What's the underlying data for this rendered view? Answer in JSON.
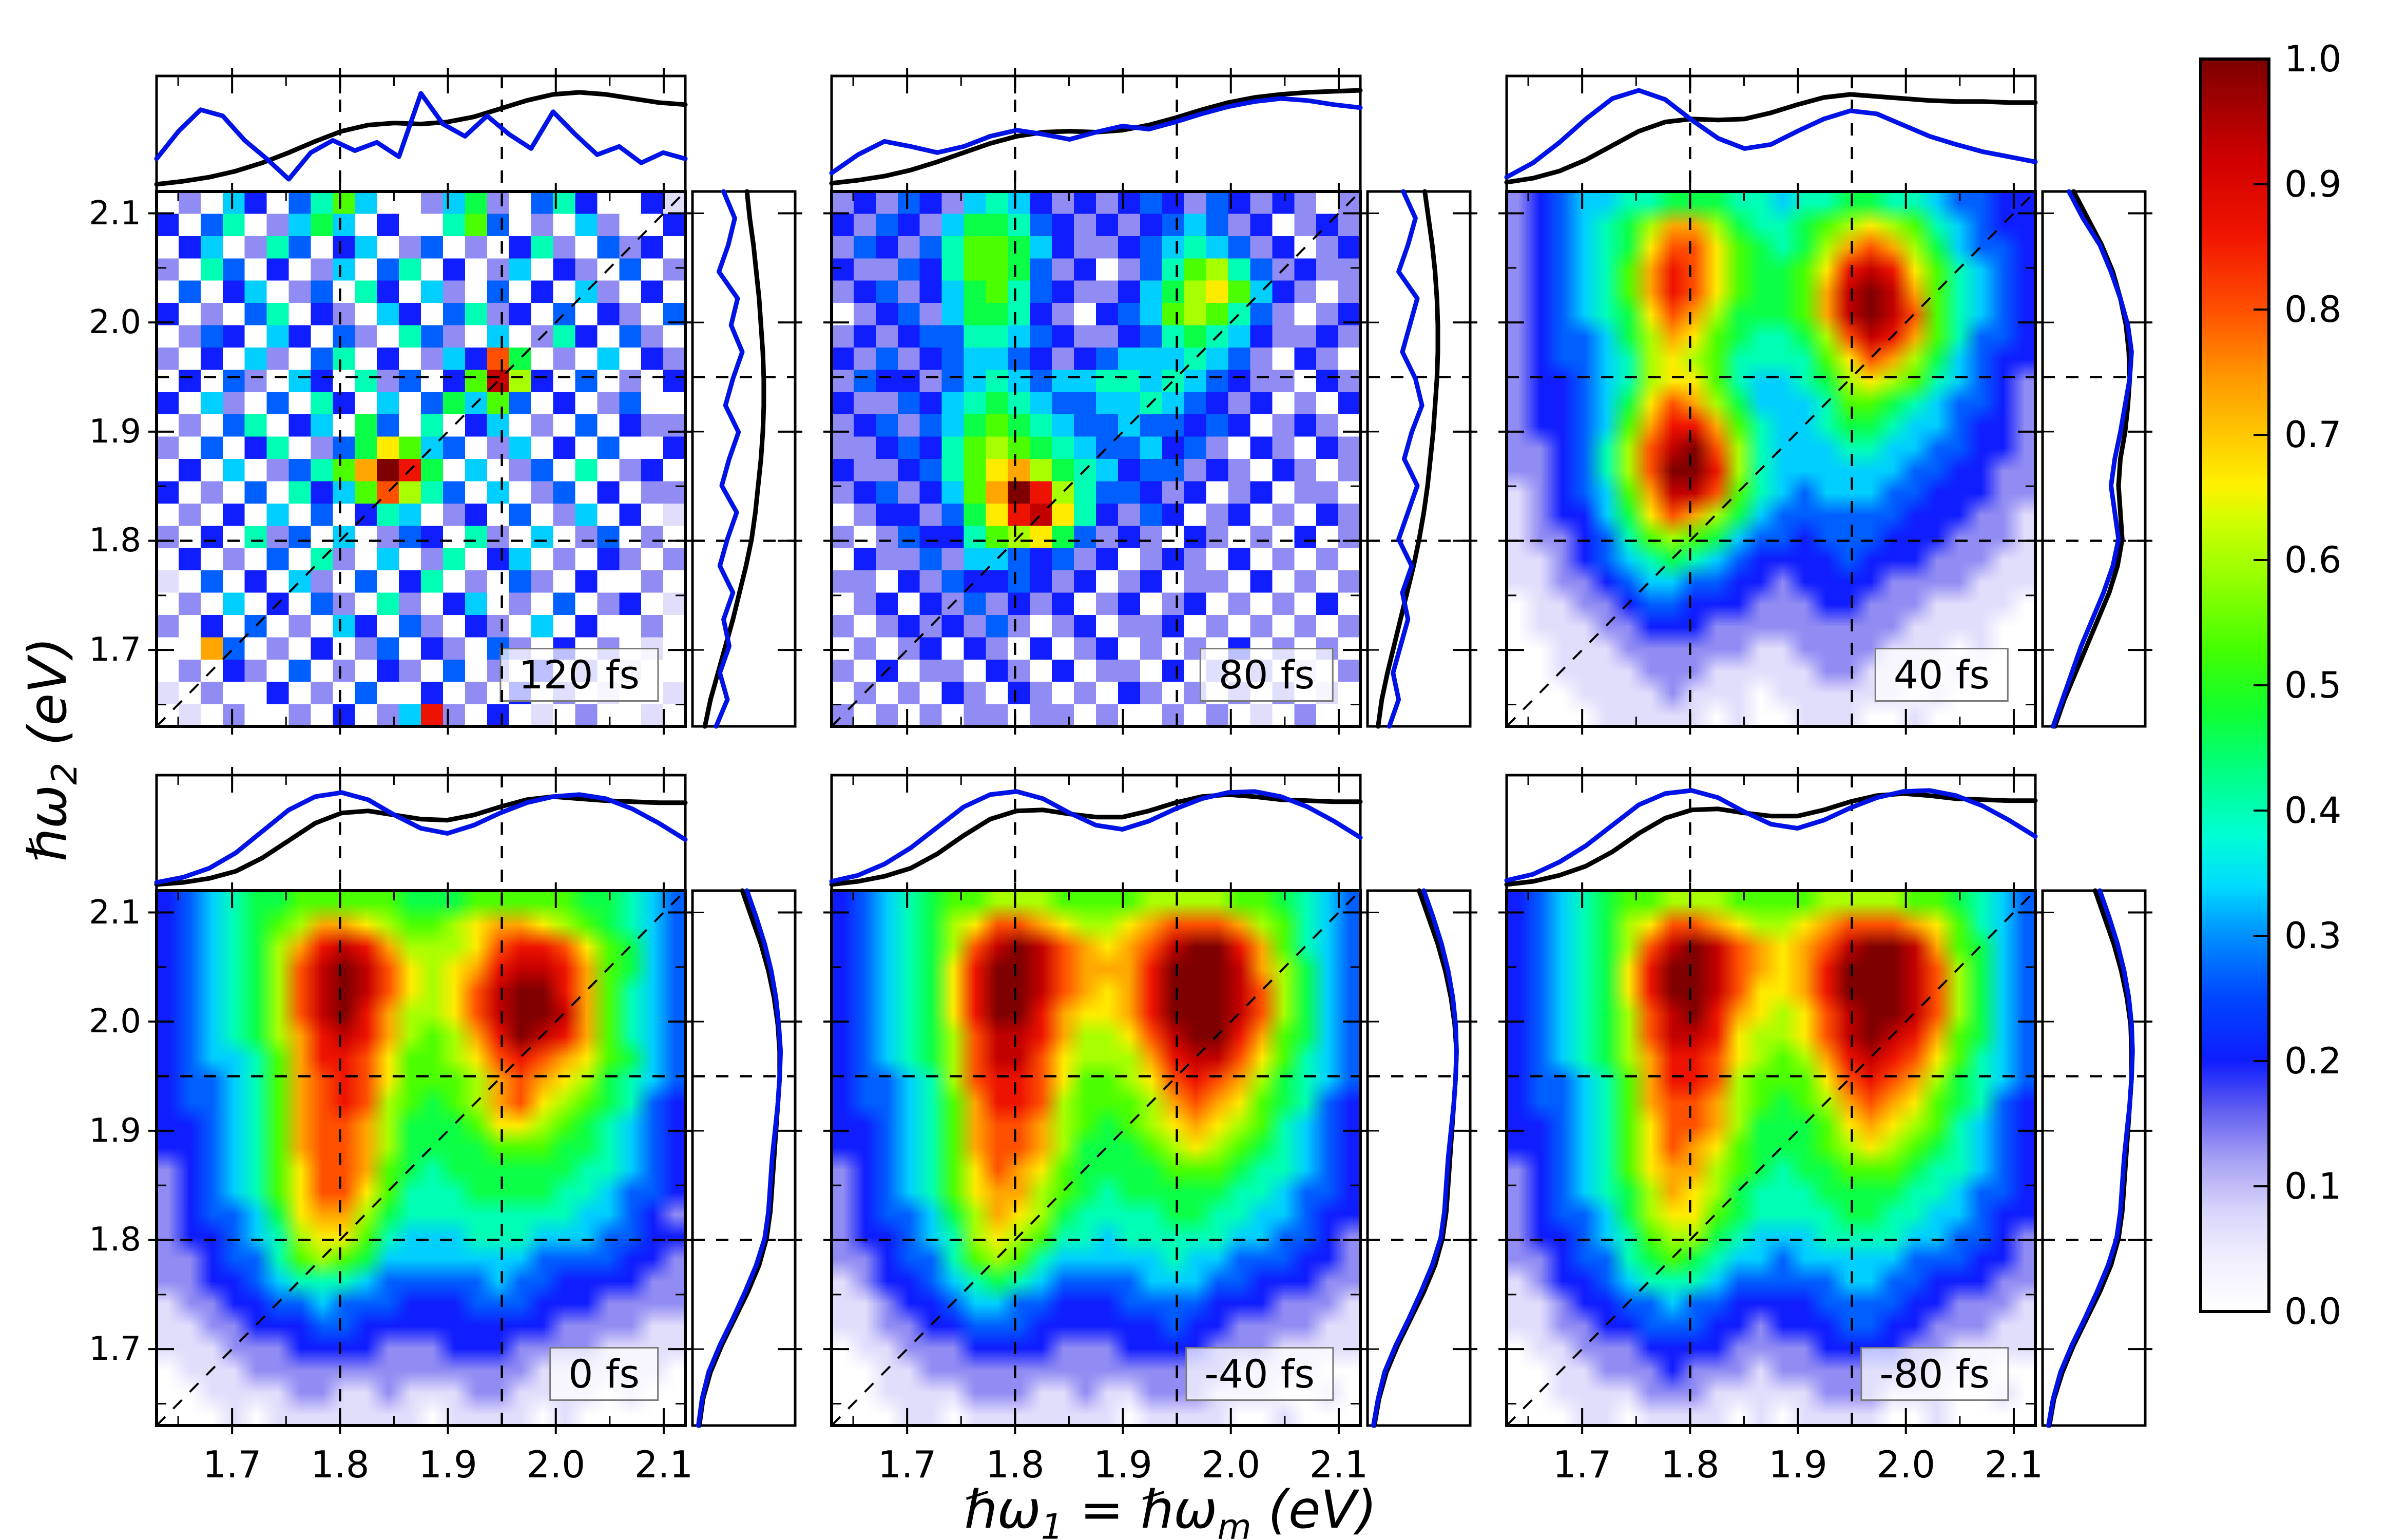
{
  "chart_data": {
    "type": "heatmap",
    "title": "",
    "axis": {
      "range": [
        1.63,
        2.12
      ],
      "tick_values": [
        1.7,
        1.8,
        1.9,
        2.0,
        2.1
      ],
      "tick_labels": [
        "1.7",
        "1.8",
        "1.9",
        "2.0",
        "2.1"
      ],
      "y_tick_values": [
        2.1,
        2.0,
        1.9,
        1.8,
        1.7
      ],
      "y_tick_labels": [
        "2.1",
        "2.0",
        "1.9",
        "1.8",
        "1.7"
      ],
      "minor_step": 0.05,
      "guides": [
        1.8,
        1.95
      ],
      "diagonal": true,
      "xlabel_parts": {
        "pre": "ℏω",
        "sub1": "1",
        "mid": " = ℏω",
        "sub2": "m",
        "post": "  (eV)"
      },
      "ylabel_parts": {
        "pre": "ℏω",
        "sub": "2",
        "post": "  (eV)"
      }
    },
    "colorbar": {
      "tick_labels": [
        "1.0",
        "0.9",
        "0.8",
        "0.7",
        "0.6",
        "0.5",
        "0.4",
        "0.3",
        "0.2",
        "0.1",
        "0.0"
      ],
      "tick_values": [
        1.0,
        0.9,
        0.8,
        0.7,
        0.6,
        0.5,
        0.4,
        0.3,
        0.2,
        0.1,
        0.0
      ]
    },
    "colormap": [
      [
        0,
        "#ffffff"
      ],
      [
        0.04,
        "#f2f0fd"
      ],
      [
        0.08,
        "#d8d5fb"
      ],
      [
        0.12,
        "#a8a3f4"
      ],
      [
        0.16,
        "#625ef0"
      ],
      [
        0.2,
        "#0f1dff"
      ],
      [
        0.25,
        "#0046ff"
      ],
      [
        0.3,
        "#0090ff"
      ],
      [
        0.34,
        "#00dcff"
      ],
      [
        0.38,
        "#00ffd4"
      ],
      [
        0.43,
        "#00ff85"
      ],
      [
        0.48,
        "#10ff30"
      ],
      [
        0.53,
        "#46ff00"
      ],
      [
        0.58,
        "#8eff00"
      ],
      [
        0.63,
        "#ceff00"
      ],
      [
        0.66,
        "#fff200"
      ],
      [
        0.7,
        "#ffc900"
      ],
      [
        0.75,
        "#ff9400"
      ],
      [
        0.8,
        "#ff5000"
      ],
      [
        0.86,
        "#f21500"
      ],
      [
        0.92,
        "#d10000"
      ],
      [
        1,
        "#7e0000"
      ]
    ],
    "style": {
      "blue": "#0013e6",
      "black": "#000000",
      "frame": "#000000",
      "box_bg": "rgba(255,255,255,0.72)",
      "box_border": "#7a7a7a"
    },
    "panels": [
      {
        "label": "120 fs",
        "row": 0,
        "col": 0,
        "smooth": false,
        "grid": [
          "020530468500257204630031",
          "304602575030068402052003",
          "035026403502402036204230",
          "206403025046030250320402",
          "040350240630520403052030",
          "302046032053046230403204",
          "024305304206420502630420",
          "203052046030253c70205032",
          "030420530624038e93040203",
          "305204063050475840302400",
          "020460350740603502040322",
          "2040360247a8540250304003",
          "030502468bfd705024060230",
          "3020406358c9640502403022",
          "020305040365023040250301",
          "203062405024306205024020",
          "030204062050260350203202",
          "104030520403602042030020",
          "020503042062035020402301",
          "203040205304203205030020",
          "00b402030240320420302010",
          "020320402032040203020100",
          "102003020400302030201001",
          "010200203025d20301020010"
        ],
        "curves": {
          "top_black": [
            3,
            6,
            10,
            16,
            24,
            34,
            45,
            55,
            61,
            63,
            62,
            64,
            69,
            77,
            85,
            91,
            93,
            91,
            87,
            83,
            81
          ],
          "top_blue": [
            28,
            55,
            76,
            70,
            46,
            28,
            8,
            34,
            46,
            36,
            44,
            30,
            92,
            62,
            50,
            70,
            52,
            38,
            74,
            52,
            32,
            40,
            24,
            34,
            28
          ],
          "right_black": [
            55,
            58,
            62,
            65,
            68,
            70,
            72,
            73,
            73,
            72,
            70,
            67,
            64,
            60,
            54,
            47,
            40,
            32,
            24,
            16,
            10
          ],
          "right_blue": [
            30,
            42,
            35,
            25,
            45,
            38,
            50,
            40,
            32,
            46,
            36,
            28,
            44,
            34,
            26,
            40,
            30,
            36,
            26,
            34,
            22
          ]
        }
      },
      {
        "label": "80 fs",
        "row": 0,
        "col": 1,
        "smooth": false,
        "grid": [
          "232432565323234324323202",
          "324325776432323454230232",
          "243246887532234565423023",
          "322436887423024689642322",
          "23423578643223579a853202",
          "023425776320345898642023",
          "232344665432234676532232",
          "324234554323455565420320",
          "243324565455665654322032",
          "322435676544556543230203",
          "234245787654454434302320",
          "223436898765445342032032",
          "3223468ab976534423203202",
          "2342358bfd96443230230220",
          "0233247adea6324302302032",
          "202433689a74232032020302",
          "032242554342302320302020",
          "220324334323023022030202",
          "023032423230230230202030",
          "202323242023022302020202",
          "020230320302302020302020",
          "203022032030220302020102",
          "020203203202032020202010",
          "202020220220200202010200"
        ],
        "curves": {
          "top_black": [
            4,
            7,
            11,
            17,
            25,
            34,
            43,
            50,
            54,
            55,
            54,
            56,
            61,
            68,
            76,
            83,
            88,
            91,
            93,
            94,
            95
          ],
          "top_blue": [
            14,
            32,
            45,
            40,
            34,
            40,
            50,
            56,
            52,
            47,
            54,
            60,
            57,
            64,
            72,
            79,
            84,
            87,
            85,
            81,
            78
          ],
          "right_black": [
            58,
            62,
            66,
            69,
            71,
            72,
            72,
            71,
            69,
            67,
            64,
            61,
            57,
            52,
            46,
            39,
            32,
            25,
            18,
            12,
            8
          ],
          "right_blue": [
            35,
            48,
            40,
            30,
            50,
            42,
            34,
            48,
            55,
            44,
            36,
            50,
            40,
            30,
            44,
            34,
            40,
            32,
            24,
            30,
            20
          ]
        }
      },
      {
        "label": "40 fs",
        "row": 0,
        "col": 2,
        "smooth": true,
        "grid": [
          "234556677766566776654433",
          "2345679bb9766789a9865433",
          "234567acca87679bcb975443",
          "234568bdca8778adeda86543",
          "234568bdca8778befeb86543",
          "234567acb97778befec86543",
          "2344579ba876679cedb86443",
          "2344569a9866668acb975433",
          "2334569aa8655679a9865432",
          "233457acb975556887654432",
          "233458bddb86556776554332",
          "223469cefc96555665544332",
          "223469cffd96555555443322",
          "123458beec86545554433322",
          "123357acb975444444333221",
          "122346898754434443332221",
          "112345676543333433322211",
          "112234554433233332222111",
          "011223443332223322211110",
          "011122333222222222111100",
          "001112222221122221110100",
          "001111222111112211101000",
          "000111121110111111010000",
          "000011111010011100100000"
        ],
        "curves": {
          "top_black": [
            5,
            9,
            16,
            27,
            41,
            55,
            64,
            67,
            66,
            67,
            73,
            81,
            88,
            91,
            89,
            87,
            85,
            84,
            84,
            83,
            83
          ],
          "top_blue": [
            10,
            24,
            44,
            67,
            87,
            95,
            86,
            66,
            48,
            38,
            42,
            55,
            67,
            75,
            72,
            61,
            50,
            42,
            35,
            30,
            25
          ],
          "right_black": [
            30,
            45,
            60,
            72,
            80,
            86,
            89,
            90,
            88,
            85,
            80,
            78,
            80,
            82,
            77,
            68,
            56,
            44,
            32,
            20,
            10
          ],
          "right_blue": [
            25,
            40,
            58,
            70,
            80,
            88,
            92,
            90,
            85,
            80,
            74,
            70,
            74,
            78,
            72,
            62,
            50,
            38,
            28,
            18,
            8
          ]
        }
      },
      {
        "label": "0 fs",
        "row": 1,
        "col": 0,
        "smooth": true,
        "grid": [
          "345677888887778888877654",
          "3456789bba9889abba987654",
          "345679bdedb999acddca8754",
          "345679cefeca9abdeedb8754",
          "345679cefeca9aceffdb8654",
          "345679cefdb99aceffeb8654",
          "345679bdedb989bdfedb8654",
          "345568bddca889acdcba8754",
          "344568bcdca8889bcba97654",
          "344568bcdc98789bca987643",
          "334568bccb97778aa9876543",
          "334568bccb97777888776543",
          "234568accb87677777766543",
          "234568acca86667777665443",
          "234457abb976666666655432",
          "2334569aa865556665554433",
          "223446898755555554444332",
          "223345666544444544333322",
          "122334454443334443332222",
          "112233344333333333222211",
          "111222333322233322221111",
          "011122222222222221111110",
          "001111221121112211110100",
          "000101111111011110100000"
        ],
        "curves": {
          "top_black": [
            2,
            4,
            8,
            15,
            28,
            45,
            62,
            72,
            74,
            70,
            66,
            65,
            70,
            78,
            85,
            88,
            86,
            84,
            83,
            82,
            82
          ],
          "top_blue": [
            4,
            9,
            18,
            33,
            54,
            75,
            88,
            92,
            85,
            70,
            57,
            52,
            60,
            72,
            82,
            88,
            90,
            86,
            76,
            62,
            46
          ],
          "right_black": [
            50,
            60,
            70,
            78,
            84,
            88,
            90,
            90,
            88,
            86,
            84,
            82,
            80,
            76,
            68,
            56,
            42,
            28,
            16,
            8,
            4
          ],
          "right_blue": [
            55,
            65,
            74,
            81,
            86,
            89,
            91,
            90,
            88,
            85,
            82,
            80,
            78,
            74,
            65,
            53,
            40,
            26,
            14,
            7,
            3
          ]
        }
      },
      {
        "label": "-40 fs",
        "row": 1,
        "col": 1,
        "smooth": true,
        "grid": [
          "345678899988889999887654",
          "345679accba99abcccb98654",
          "345679cefecbabceffdb8654",
          "34567adffecbbbdfffeb9754",
          "34567adffecbabdfffec9754",
          "34567adffdbaabdfffec9754",
          "345679ceedb99aceffdb8754",
          "345679ceeca999bdeeca8654",
          "344569cddca889acdcb97654",
          "344568bddc98889bcba87643",
          "334568bccb98789aba986543",
          "334568bccb977789a9876543",
          "234568acba87777888766543",
          "234568abb987677777665443",
          "2344579ba976666776655433",
          "2334569a9866566666554432",
          "223446898655555655444332",
          "123345676544445554433322",
          "112334554433344443332221",
          "112233444333333433222211",
          "011222333322233332221111",
          "001122222222222222111100",
          "001111222112112221110010",
          "000110111111101111001000"
        ],
        "curves": {
          "top_black": [
            2,
            5,
            10,
            18,
            32,
            50,
            66,
            74,
            75,
            71,
            68,
            68,
            74,
            82,
            88,
            90,
            88,
            85,
            84,
            83,
            83
          ],
          "top_blue": [
            5,
            11,
            22,
            38,
            58,
            78,
            90,
            93,
            86,
            72,
            60,
            56,
            64,
            76,
            86,
            92,
            93,
            88,
            78,
            64,
            48
          ],
          "right_black": [
            52,
            62,
            72,
            80,
            86,
            90,
            92,
            91,
            89,
            87,
            85,
            83,
            81,
            77,
            69,
            57,
            43,
            29,
            17,
            9,
            4
          ],
          "right_blue": [
            57,
            67,
            76,
            83,
            88,
            91,
            92,
            91,
            89,
            86,
            83,
            81,
            79,
            75,
            66,
            54,
            41,
            27,
            15,
            8,
            3
          ]
        }
      },
      {
        "label": "-80 fs",
        "row": 1,
        "col": 2,
        "smooth": true,
        "grid": [
          "345678899988889999887654",
          "345679accba99abcccba8654",
          "345679cefecbabceffeb8754",
          "34567adffecbabdfffec9754",
          "34567adffecaabdfffec9754",
          "345679cefdba9aceffec9754",
          "345679ceeda99acefedb8754",
          "345679bddca989bdedca8654",
          "344568bddc9888acdcb97654",
          "344568bccb98789bcba87643",
          "334568accb97778aba986543",
          "334568acba877789a9876543",
          "234568abb987677888766543",
          "2345679ba976667777665443",
          "2344579aa876666776655433",
          "233456899765556666554432",
          "223446787655455555444332",
          "123345666544444554433322",
          "112334454433334444332221",
          "112233444332333443322211",
          "011222333322223333221111",
          "001122232221222222211100",
          "001111222111112221110010",
          "000110111101011110010000"
        ],
        "curves": {
          "top_black": [
            2,
            5,
            11,
            20,
            34,
            52,
            67,
            75,
            76,
            72,
            69,
            69,
            75,
            83,
            89,
            91,
            89,
            86,
            85,
            84,
            84
          ],
          "top_blue": [
            6,
            12,
            24,
            40,
            60,
            80,
            91,
            94,
            87,
            73,
            61,
            57,
            65,
            77,
            87,
            93,
            94,
            89,
            79,
            65,
            49
          ],
          "right_black": [
            53,
            63,
            73,
            81,
            87,
            91,
            92,
            92,
            90,
            88,
            86,
            84,
            82,
            78,
            70,
            58,
            44,
            30,
            18,
            9,
            4
          ],
          "right_blue": [
            58,
            68,
            77,
            84,
            89,
            92,
            93,
            92,
            90,
            87,
            84,
            82,
            80,
            76,
            67,
            55,
            42,
            28,
            16,
            8,
            3
          ]
        }
      }
    ]
  }
}
